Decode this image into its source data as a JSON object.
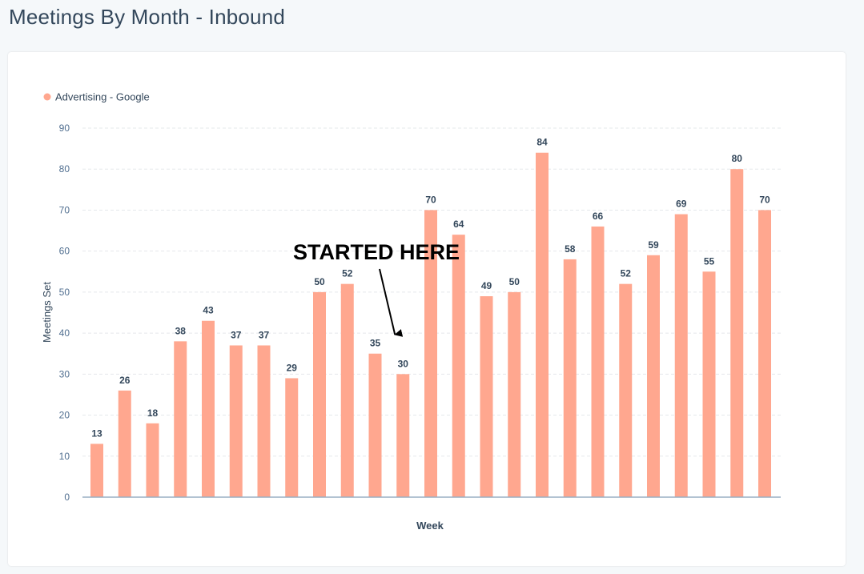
{
  "page": {
    "title": "Meetings By Month - Inbound"
  },
  "chart_data": {
    "type": "bar",
    "title": "",
    "xlabel": "Week",
    "ylabel": "Meetings Set",
    "ylim": [
      0,
      90
    ],
    "yticks": [
      0,
      10,
      20,
      30,
      40,
      50,
      60,
      70,
      80,
      90
    ],
    "grid": true,
    "legend": {
      "placement": "top-left",
      "entries": [
        "Advertising - Google"
      ]
    },
    "series": [
      {
        "name": "Advertising - Google",
        "color": "#ffa78f",
        "values": [
          13,
          26,
          18,
          38,
          43,
          37,
          37,
          29,
          50,
          52,
          35,
          30,
          70,
          64,
          49,
          50,
          84,
          58,
          66,
          52,
          59,
          69,
          55,
          80,
          70
        ]
      }
    ],
    "annotation": {
      "text": "STARTED HERE",
      "points_to_index": 11
    }
  }
}
